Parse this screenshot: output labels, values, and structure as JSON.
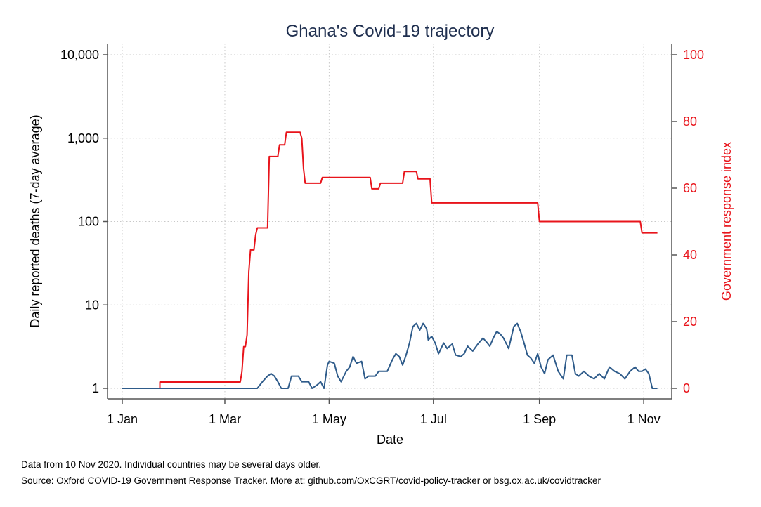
{
  "chart_data": {
    "type": "line",
    "title": "Ghana's Covid-19 trajectory",
    "xlabel": "Date",
    "ylabel_left": "Daily reported deaths (7-day average)",
    "ylabel_right": "Government response index",
    "x_ticks": [
      {
        "date": "2020-01-01",
        "label": "1 Jan"
      },
      {
        "date": "2020-03-01",
        "label": "1 Mar"
      },
      {
        "date": "2020-05-01",
        "label": "1 May"
      },
      {
        "date": "2020-07-01",
        "label": "1 Jul"
      },
      {
        "date": "2020-09-01",
        "label": "1 Sep"
      },
      {
        "date": "2020-11-01",
        "label": "1 Nov"
      }
    ],
    "xlim": [
      "2020-01-01",
      "2020-11-10"
    ],
    "y_left": {
      "scale": "log",
      "lim": [
        1,
        10000
      ],
      "ticks": [
        {
          "value": 1,
          "label": "1"
        },
        {
          "value": 10,
          "label": "10"
        },
        {
          "value": 100,
          "label": "100"
        },
        {
          "value": 1000,
          "label": "1,000"
        },
        {
          "value": 10000,
          "label": "10,000"
        }
      ]
    },
    "y_right": {
      "scale": "linear",
      "lim": [
        0,
        100
      ],
      "ticks": [
        {
          "value": 0,
          "label": "0"
        },
        {
          "value": 20,
          "label": "20"
        },
        {
          "value": 40,
          "label": "40"
        },
        {
          "value": 60,
          "label": "60"
        },
        {
          "value": 80,
          "label": "80"
        },
        {
          "value": 100,
          "label": "100"
        }
      ]
    },
    "grid": true,
    "series": [
      {
        "axis": "right",
        "color": "#e8141b",
        "points": [
          [
            "2020-01-01",
            0
          ],
          [
            "2020-01-18",
            0
          ],
          [
            "2020-01-23",
            0
          ],
          [
            "2020-01-23",
            1.9
          ],
          [
            "2020-03-10",
            1.9
          ],
          [
            "2020-03-11",
            5
          ],
          [
            "2020-03-12",
            12.5
          ],
          [
            "2020-03-13",
            12.5
          ],
          [
            "2020-03-14",
            16
          ],
          [
            "2020-03-15",
            35
          ],
          [
            "2020-03-16",
            41.5
          ],
          [
            "2020-03-18",
            41.5
          ],
          [
            "2020-03-19",
            46
          ],
          [
            "2020-03-20",
            48.1
          ],
          [
            "2020-03-26",
            48.1
          ],
          [
            "2020-03-27",
            69.5
          ],
          [
            "2020-04-01",
            69.5
          ],
          [
            "2020-04-02",
            73
          ],
          [
            "2020-04-05",
            73
          ],
          [
            "2020-04-06",
            76.8
          ],
          [
            "2020-04-14",
            76.8
          ],
          [
            "2020-04-15",
            75
          ],
          [
            "2020-04-16",
            66
          ],
          [
            "2020-04-17",
            61.5
          ],
          [
            "2020-04-26",
            61.5
          ],
          [
            "2020-04-27",
            63.2
          ],
          [
            "2020-05-25",
            63.2
          ],
          [
            "2020-05-26",
            59.8
          ],
          [
            "2020-05-30",
            59.8
          ],
          [
            "2020-05-31",
            61.5
          ],
          [
            "2020-06-13",
            61.5
          ],
          [
            "2020-06-14",
            65
          ],
          [
            "2020-06-21",
            65
          ],
          [
            "2020-06-22",
            62.8
          ],
          [
            "2020-06-29",
            62.8
          ],
          [
            "2020-06-30",
            55.6
          ],
          [
            "2020-08-31",
            55.6
          ],
          [
            "2020-09-01",
            50
          ],
          [
            "2020-10-30",
            50
          ],
          [
            "2020-10-31",
            46.6
          ],
          [
            "2020-11-09",
            46.6
          ]
        ]
      },
      {
        "axis": "left",
        "color": "#2e5b8a",
        "points": [
          [
            "2020-01-01",
            1
          ],
          [
            "2020-03-20",
            1
          ],
          [
            "2020-03-23",
            1.2
          ],
          [
            "2020-03-26",
            1.4
          ],
          [
            "2020-03-28",
            1.5
          ],
          [
            "2020-03-30",
            1.4
          ],
          [
            "2020-04-01",
            1.2
          ],
          [
            "2020-04-03",
            1
          ],
          [
            "2020-04-07",
            1
          ],
          [
            "2020-04-09",
            1.4
          ],
          [
            "2020-04-13",
            1.4
          ],
          [
            "2020-04-15",
            1.2
          ],
          [
            "2020-04-19",
            1.2
          ],
          [
            "2020-04-21",
            1
          ],
          [
            "2020-04-24",
            1.1
          ],
          [
            "2020-04-26",
            1.2
          ],
          [
            "2020-04-28",
            1
          ],
          [
            "2020-04-30",
            1.9
          ],
          [
            "2020-05-01",
            2.1
          ],
          [
            "2020-05-04",
            2
          ],
          [
            "2020-05-06",
            1.4
          ],
          [
            "2020-05-08",
            1.2
          ],
          [
            "2020-05-11",
            1.6
          ],
          [
            "2020-05-13",
            1.8
          ],
          [
            "2020-05-15",
            2.4
          ],
          [
            "2020-05-17",
            2
          ],
          [
            "2020-05-20",
            2.1
          ],
          [
            "2020-05-22",
            1.3
          ],
          [
            "2020-05-24",
            1.4
          ],
          [
            "2020-05-28",
            1.4
          ],
          [
            "2020-05-30",
            1.6
          ],
          [
            "2020-06-04",
            1.6
          ],
          [
            "2020-06-07",
            2.2
          ],
          [
            "2020-06-09",
            2.6
          ],
          [
            "2020-06-11",
            2.4
          ],
          [
            "2020-06-13",
            1.9
          ],
          [
            "2020-06-15",
            2.5
          ],
          [
            "2020-06-17",
            3.5
          ],
          [
            "2020-06-19",
            5.5
          ],
          [
            "2020-06-21",
            6
          ],
          [
            "2020-06-23",
            5
          ],
          [
            "2020-06-25",
            6
          ],
          [
            "2020-06-27",
            5.2
          ],
          [
            "2020-06-28",
            3.8
          ],
          [
            "2020-06-30",
            4.2
          ],
          [
            "2020-07-02",
            3.5
          ],
          [
            "2020-07-04",
            2.6
          ],
          [
            "2020-07-07",
            3.5
          ],
          [
            "2020-07-09",
            3
          ],
          [
            "2020-07-12",
            3.4
          ],
          [
            "2020-07-14",
            2.5
          ],
          [
            "2020-07-17",
            2.4
          ],
          [
            "2020-07-19",
            2.6
          ],
          [
            "2020-07-21",
            3.2
          ],
          [
            "2020-07-24",
            2.8
          ],
          [
            "2020-07-27",
            3.4
          ],
          [
            "2020-07-30",
            4
          ],
          [
            "2020-08-01",
            3.6
          ],
          [
            "2020-08-03",
            3.2
          ],
          [
            "2020-08-05",
            4
          ],
          [
            "2020-08-07",
            4.8
          ],
          [
            "2020-08-09",
            4.5
          ],
          [
            "2020-08-11",
            4
          ],
          [
            "2020-08-14",
            3
          ],
          [
            "2020-08-17",
            5.5
          ],
          [
            "2020-08-19",
            6
          ],
          [
            "2020-08-21",
            4.8
          ],
          [
            "2020-08-23",
            3.5
          ],
          [
            "2020-08-25",
            2.5
          ],
          [
            "2020-08-27",
            2.3
          ],
          [
            "2020-08-29",
            2
          ],
          [
            "2020-08-31",
            2.6
          ],
          [
            "2020-09-02",
            1.8
          ],
          [
            "2020-09-04",
            1.5
          ],
          [
            "2020-09-06",
            2.2
          ],
          [
            "2020-09-09",
            2.5
          ],
          [
            "2020-09-12",
            1.6
          ],
          [
            "2020-09-15",
            1.3
          ],
          [
            "2020-09-17",
            2.5
          ],
          [
            "2020-09-20",
            2.5
          ],
          [
            "2020-09-22",
            1.5
          ],
          [
            "2020-09-24",
            1.4
          ],
          [
            "2020-09-27",
            1.6
          ],
          [
            "2020-09-30",
            1.4
          ],
          [
            "2020-10-03",
            1.3
          ],
          [
            "2020-10-06",
            1.5
          ],
          [
            "2020-10-09",
            1.3
          ],
          [
            "2020-10-12",
            1.8
          ],
          [
            "2020-10-15",
            1.6
          ],
          [
            "2020-10-18",
            1.5
          ],
          [
            "2020-10-21",
            1.3
          ],
          [
            "2020-10-24",
            1.6
          ],
          [
            "2020-10-27",
            1.8
          ],
          [
            "2020-10-29",
            1.6
          ],
          [
            "2020-10-31",
            1.6
          ],
          [
            "2020-11-02",
            1.7
          ],
          [
            "2020-11-04",
            1.5
          ],
          [
            "2020-11-06",
            1
          ],
          [
            "2020-11-09",
            1
          ]
        ]
      }
    ]
  },
  "notes": {
    "line1": "Data from 10 Nov 2020. Individual countries may be several days older.",
    "line2": "Source: Oxford COVID-19 Government Response Tracker. More at: github.com/OxCGRT/covid-policy-tracker or bsg.ox.ac.uk/covidtracker"
  }
}
